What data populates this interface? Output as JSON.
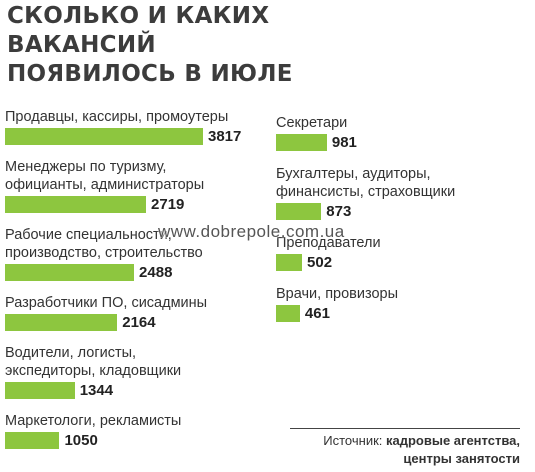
{
  "chart_data": {
    "type": "bar",
    "title": "СКОЛЬКО И КАКИХ\nВАКАНСИЙ\nПОЯВИЛОСЬ В ИЮЛЕ",
    "categories": [
      "Продавцы, кассиры, промоутеры",
      "Менеджеры по туризму,\nофицианты, администраторы",
      "Рабочие специальности,\nпроизводство, строительство",
      "Разработчики ПО, сисадмины",
      "Водители, логисты,\nэкспедиторы, кладовщики",
      "Маркетологи, рекламисты",
      "Секретари",
      "Бухгалтеры, аудиторы,\nфинансисты, страховщики",
      "Преподаватели",
      "Врачи, провизоры"
    ],
    "values": [
      3817,
      2719,
      2488,
      2164,
      1344,
      1050,
      981,
      873,
      502,
      461
    ],
    "color": "#8dc63f",
    "source_label": "Источник:",
    "source": "кадровые агентства,\nцентры занятости",
    "watermark": "www.dobrepole.com.ua"
  }
}
